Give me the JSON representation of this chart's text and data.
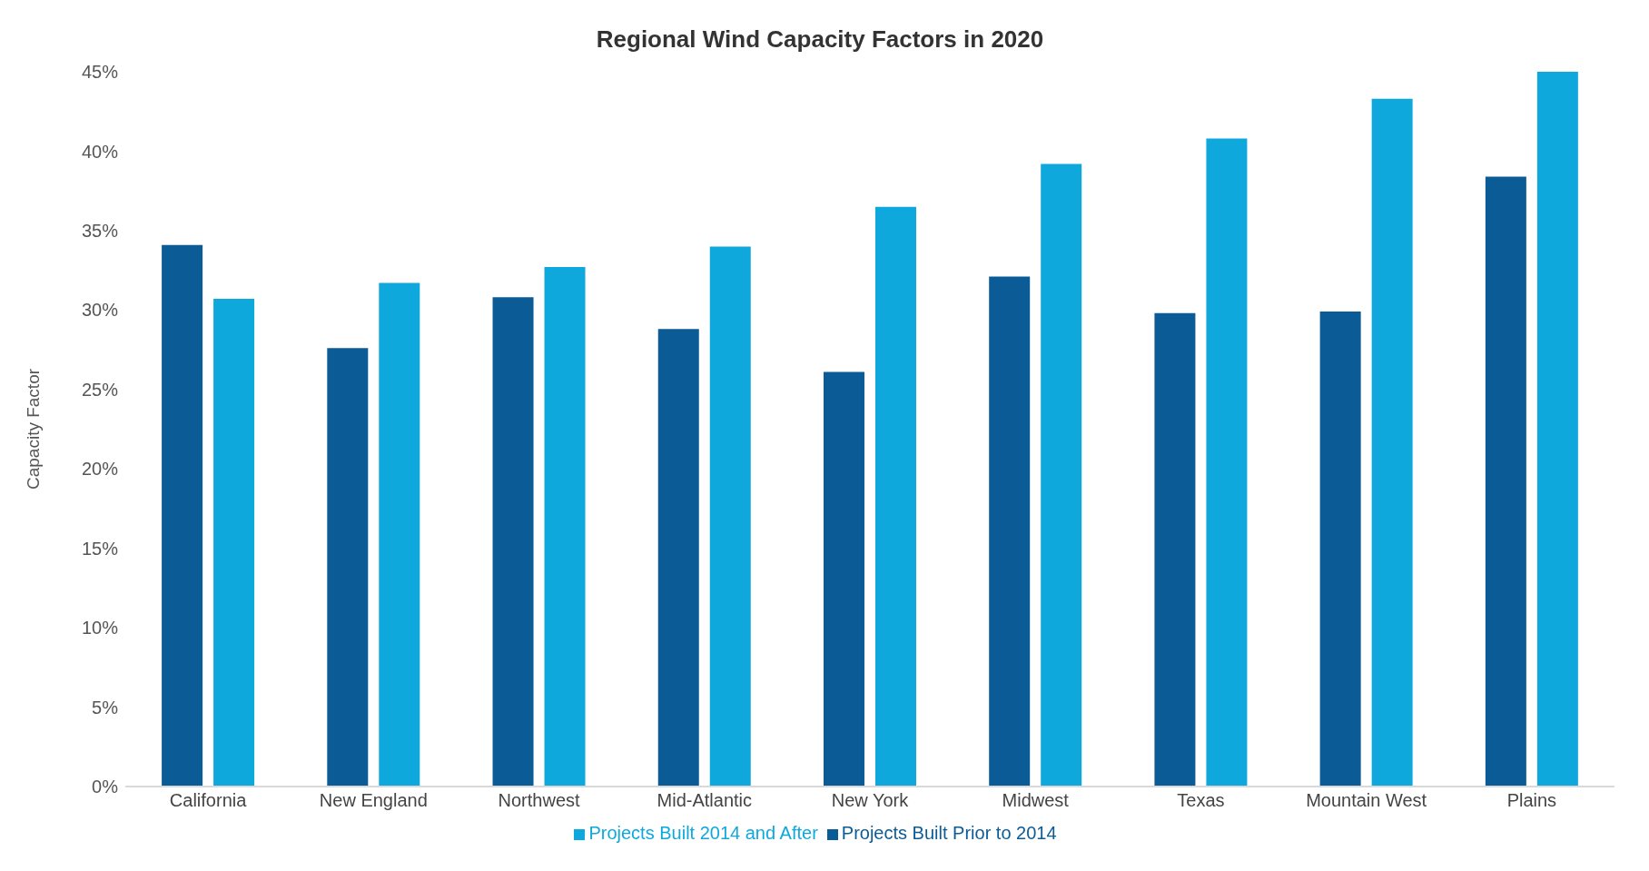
{
  "chart_data": {
    "type": "bar",
    "title": "Regional Wind Capacity Factors in 2020",
    "ylabel": "Capacity Factor",
    "categories": [
      "California",
      "New England",
      "Northwest",
      "Mid-Atlantic",
      "New York",
      "Midwest",
      "Texas",
      "Mountain West",
      "Plains"
    ],
    "series": [
      {
        "name": "Projects Built Prior to 2014",
        "color": "#0b5b97",
        "values": [
          34.1,
          27.6,
          30.8,
          28.8,
          26.1,
          32.1,
          29.8,
          29.9,
          38.4
        ]
      },
      {
        "name": "Projects Built 2014 and After",
        "color": "#0fa8dd",
        "values": [
          30.7,
          31.7,
          32.7,
          34.0,
          36.5,
          39.2,
          40.8,
          43.3,
          45.0
        ]
      }
    ],
    "ylim": [
      0,
      45
    ],
    "yticks": [
      {
        "value": 0,
        "label": "0%"
      },
      {
        "value": 5,
        "label": "5%"
      },
      {
        "value": 10,
        "label": "10%"
      },
      {
        "value": 15,
        "label": "15%"
      },
      {
        "value": 20,
        "label": "20%"
      },
      {
        "value": 25,
        "label": "25%"
      },
      {
        "value": 30,
        "label": "30%"
      },
      {
        "value": 35,
        "label": "35%"
      },
      {
        "value": 40,
        "label": "40%"
      },
      {
        "value": 45,
        "label": "45%"
      }
    ],
    "grid": false,
    "legend": "bottom"
  }
}
